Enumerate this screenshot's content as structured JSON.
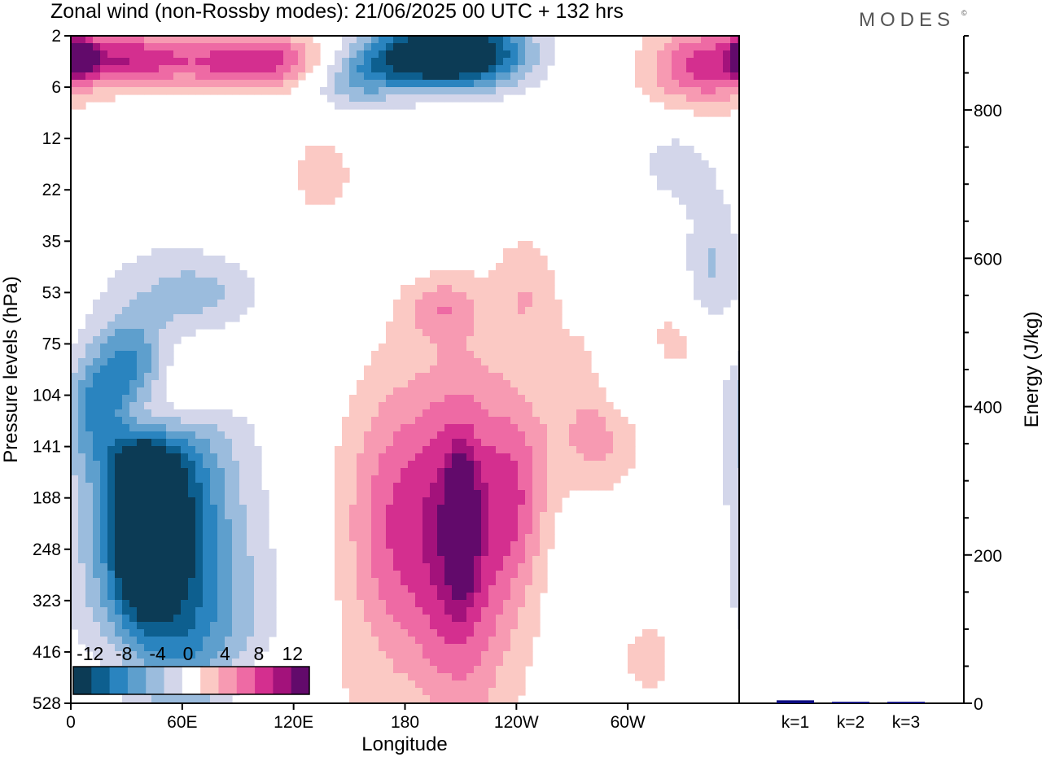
{
  "page": {
    "title": "Zonal wind (non-Rossby modes):  21/06/2025  00 UTC  + 132 hrs",
    "logo": "MODES",
    "logo_mark": "©"
  },
  "chart_data": [
    {
      "type": "heatmap",
      "title": "Zonal wind (non-Rossby modes):  21/06/2025  00 UTC  + 132 hrs",
      "xlabel": "Longitude",
      "ylabel": "Pressure levels (hPa)",
      "x_ticks": [
        "0",
        "60E",
        "120E",
        "180",
        "120W",
        "60W"
      ],
      "x_tick_values": [
        0,
        60,
        120,
        180,
        240,
        300
      ],
      "x_range": [
        0,
        360
      ],
      "y_ticks": [
        "2",
        "6",
        "12",
        "22",
        "35",
        "53",
        "75",
        "104",
        "141",
        "188",
        "248",
        "323",
        "416",
        "528"
      ],
      "colorbar": {
        "labels": [
          "-12",
          "-8",
          "-4",
          "0",
          "4",
          "8",
          "12"
        ],
        "label_values": [
          -12,
          -8,
          -4,
          0,
          4,
          8,
          12
        ],
        "levels": [
          -14,
          -12,
          -10,
          -8,
          -6,
          -4,
          -2,
          2,
          4,
          6,
          8,
          10,
          12,
          14
        ],
        "colors": [
          "#0c3b55",
          "#0d5f8f",
          "#2a84bf",
          "#5e9fcd",
          "#9bbcdd",
          "#d3d6ea",
          "#ffffff",
          "#fbc9c4",
          "#f79ab2",
          "#ee6aa4",
          "#d42f8f",
          "#a3127b",
          "#620a6b"
        ],
        "placement": "bottom-left"
      },
      "features": [
        {
          "lon": 40,
          "lev": 9.3,
          "value": -14,
          "rx": 10,
          "ry": 1.1
        },
        {
          "lon": 45,
          "lev": 9.2,
          "value": -10,
          "rx": 22,
          "ry": 2.0
        },
        {
          "lon": 55,
          "lev": 9.8,
          "value": -5,
          "rx": 38,
          "ry": 3.6
        },
        {
          "lon": 75,
          "lev": 12.0,
          "value": -3,
          "rx": 30,
          "ry": 1.5
        },
        {
          "lon": 15,
          "lev": 7.2,
          "value": -6,
          "rx": 13,
          "ry": 0.8
        },
        {
          "lon": 32,
          "lev": 6.3,
          "value": -4,
          "rx": 12,
          "ry": 0.6
        },
        {
          "lon": 40,
          "lev": 7.5,
          "value": 8,
          "rx": 14,
          "ry": 0.5
        },
        {
          "lon": 60,
          "lev": 6.7,
          "value": 6,
          "rx": 20,
          "ry": 0.7
        },
        {
          "lon": 100,
          "lev": 12.9,
          "value": 3,
          "rx": 30,
          "ry": 0.7
        },
        {
          "lon": 190,
          "lev": 0.4,
          "value": -14,
          "rx": 28,
          "ry": 0.45
        },
        {
          "lon": 220,
          "lev": 0.3,
          "value": -8,
          "rx": 22,
          "ry": 0.5
        },
        {
          "lon": 150,
          "lev": 0.9,
          "value": -5,
          "rx": 18,
          "ry": 0.4
        },
        {
          "lon": 4,
          "lev": 0.4,
          "value": 13,
          "rx": 6,
          "ry": 0.25
        },
        {
          "lon": 30,
          "lev": 0.45,
          "value": 9,
          "rx": 24,
          "ry": 0.4
        },
        {
          "lon": 100,
          "lev": 0.5,
          "value": 10,
          "rx": 30,
          "ry": 0.4
        },
        {
          "lon": 340,
          "lev": 0.6,
          "value": 8,
          "rx": 22,
          "ry": 0.6
        },
        {
          "lon": 210,
          "lev": 9.5,
          "value": 12,
          "rx": 5,
          "ry": 0.8
        },
        {
          "lon": 210,
          "lev": 9.8,
          "value": 7,
          "rx": 16,
          "ry": 2.2
        },
        {
          "lon": 175,
          "lev": 9.5,
          "value": 5,
          "rx": 18,
          "ry": 1.8
        },
        {
          "lon": 215,
          "lev": 9.8,
          "value": 4,
          "rx": 55,
          "ry": 3.0
        },
        {
          "lon": 240,
          "lev": 9.0,
          "value": 5,
          "rx": 12,
          "ry": 1.3
        },
        {
          "lon": 285,
          "lev": 7.8,
          "value": 5,
          "rx": 18,
          "ry": 1.0
        },
        {
          "lon": 300,
          "lev": 6.5,
          "value": -5,
          "rx": 12,
          "ry": 0.6
        },
        {
          "lon": 345,
          "lev": 4.5,
          "value": -4,
          "rx": 10,
          "ry": 1.1
        },
        {
          "lon": 320,
          "lev": 6.0,
          "value": 3,
          "rx": 30,
          "ry": 0.6
        },
        {
          "lon": 325,
          "lev": 2.5,
          "value": -3,
          "rx": 14,
          "ry": 0.6
        },
        {
          "lon": 200,
          "lev": 5.3,
          "value": 4,
          "rx": 14,
          "ry": 0.4
        },
        {
          "lon": 245,
          "lev": 5.0,
          "value": 3,
          "rx": 12,
          "ry": 0.8
        },
        {
          "lon": 135,
          "lev": 2.7,
          "value": 3,
          "rx": 14,
          "ry": 0.7
        },
        {
          "lon": 310,
          "lev": 12.0,
          "value": 3,
          "rx": 16,
          "ry": 0.9
        },
        {
          "lon": 30,
          "lev": 12.5,
          "value": 3,
          "rx": 18,
          "ry": 0.8
        },
        {
          "lon": 280,
          "lev": 10.0,
          "value": -3,
          "rx": 30,
          "ry": 2.0
        },
        {
          "lon": 70,
          "lev": 5.0,
          "value": -3,
          "rx": 20,
          "ry": 0.4
        }
      ]
    },
    {
      "type": "bar",
      "ylabel": "Energy (J/kg)",
      "categories": [
        "k=1",
        "k=2",
        "k=3"
      ],
      "values": [
        4,
        2,
        2
      ],
      "ylim": [
        0,
        900
      ],
      "y_ticks": [
        0,
        200,
        400,
        600,
        800
      ],
      "color": "#0a0a80"
    }
  ]
}
